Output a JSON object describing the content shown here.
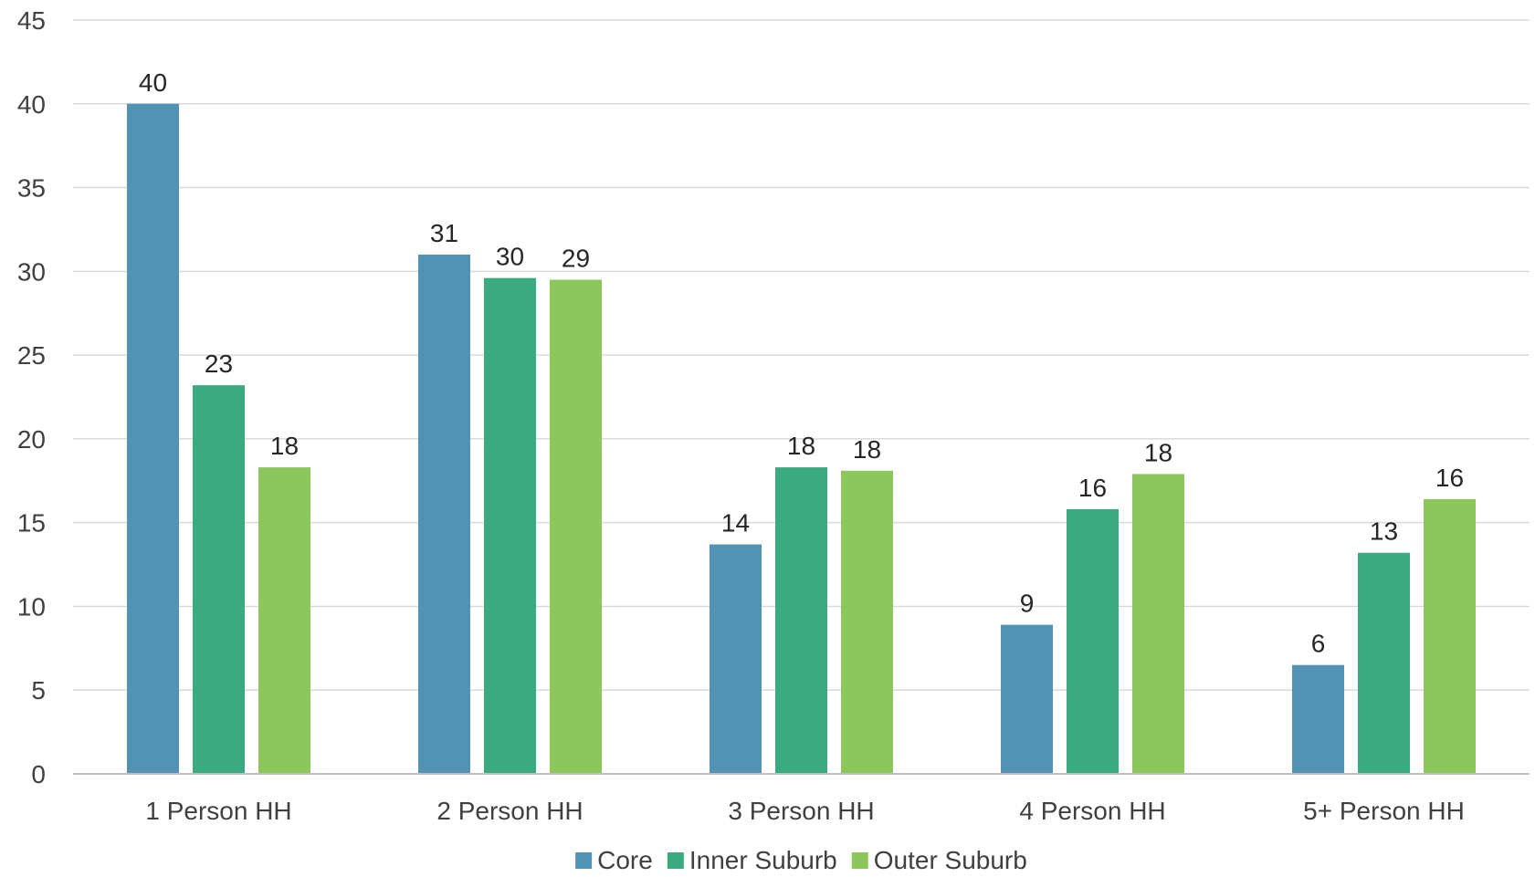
{
  "chart_data": {
    "type": "bar",
    "categories": [
      "1 Person HH",
      "2 Person HH",
      "3 Person HH",
      "4 Person HH",
      "5+ Person HH"
    ],
    "series": [
      {
        "name": "Core",
        "color": "#5293b5",
        "values": [
          40,
          31,
          13.7,
          8.9,
          6.5
        ],
        "labels": [
          "40",
          "31",
          "14",
          "9",
          "6"
        ]
      },
      {
        "name": "Inner Suburb",
        "color": "#3aab81",
        "values": [
          23.2,
          29.6,
          18.3,
          15.8,
          13.2
        ],
        "labels": [
          "23",
          "30",
          "18",
          "16",
          "13"
        ]
      },
      {
        "name": "Outer Suburb",
        "color": "#8bc75a",
        "values": [
          18.3,
          29.5,
          18.1,
          17.9,
          16.4
        ],
        "labels": [
          "18",
          "29",
          "18",
          "18",
          "16"
        ]
      }
    ],
    "ylim": [
      0,
      45
    ],
    "yticks": [
      0,
      5,
      10,
      15,
      20,
      25,
      30,
      35,
      40,
      45
    ],
    "grid": true,
    "legend_position": "bottom",
    "title": "",
    "xlabel": "",
    "ylabel": ""
  }
}
